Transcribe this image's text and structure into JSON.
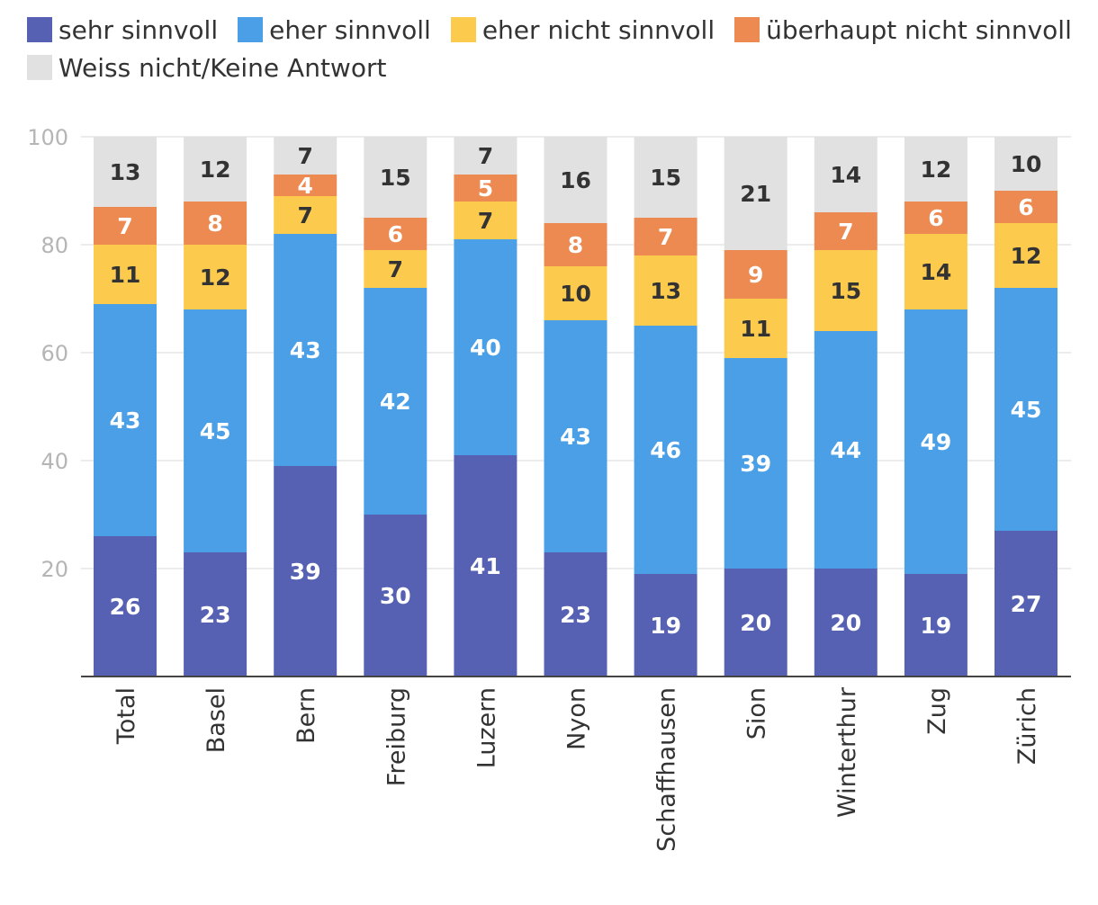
{
  "chart_data": {
    "type": "bar",
    "stacked": true,
    "title": "",
    "xlabel": "",
    "ylabel": "",
    "ylim": [
      0,
      100
    ],
    "yticks": [
      20,
      40,
      60,
      80,
      100
    ],
    "grid": true,
    "legend_position": "top-left",
    "categories": [
      "Total",
      "Basel",
      "Bern",
      "Freiburg",
      "Luzern",
      "Nyon",
      "Schaffhausen",
      "Sion",
      "Winterthur",
      "Zug",
      "Zürich"
    ],
    "series": [
      {
        "name": "sehr sinnvoll",
        "color": "#5661b3",
        "label_color": "#ffffff",
        "values": [
          26,
          23,
          39,
          30,
          41,
          23,
          19,
          20,
          20,
          19,
          27
        ]
      },
      {
        "name": "eher sinnvoll",
        "color": "#4b9fe6",
        "label_color": "#ffffff",
        "values": [
          43,
          45,
          43,
          42,
          40,
          43,
          46,
          39,
          44,
          49,
          45
        ]
      },
      {
        "name": "eher nicht sinnvoll",
        "color": "#fccb4e",
        "label_color": "#333333",
        "values": [
          11,
          12,
          7,
          7,
          7,
          10,
          13,
          11,
          15,
          14,
          12
        ]
      },
      {
        "name": "überhaupt nicht sinnvoll",
        "color": "#ed8a52",
        "label_color": "#ffffff",
        "values": [
          7,
          8,
          4,
          6,
          5,
          8,
          7,
          9,
          7,
          6,
          6
        ]
      },
      {
        "name": "Weiss nicht/Keine Antwort",
        "color": "#e1e1e1",
        "label_color": "#333333",
        "values": [
          13,
          12,
          7,
          15,
          7,
          16,
          15,
          21,
          14,
          12,
          10
        ]
      }
    ]
  }
}
